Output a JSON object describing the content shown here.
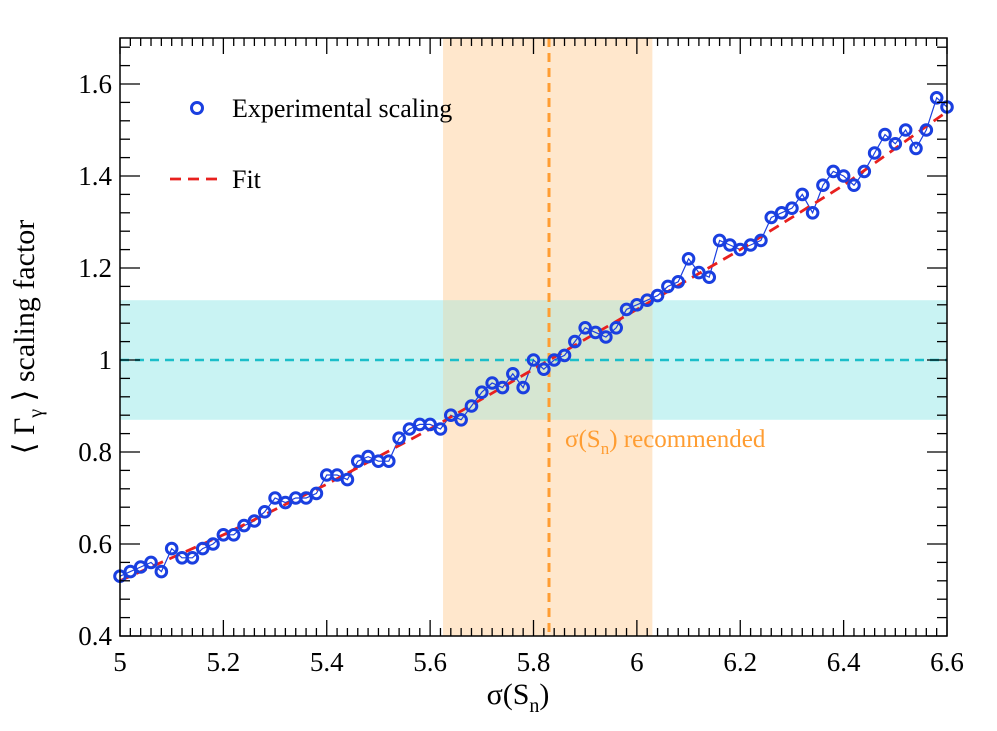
{
  "chart_data": {
    "type": "scatter",
    "title": "",
    "xlabel_base": "σ(S",
    "xlabel_sub": "n",
    "xlabel_close": ")",
    "ylabel_pre": "⟨ Γ",
    "ylabel_sub": "γ",
    "ylabel_post": " ⟩ scaling factor",
    "xlim": [
      5.0,
      6.6
    ],
    "ylim": [
      0.4,
      1.7
    ],
    "x_ticks": [
      5.0,
      5.2,
      5.4,
      5.6,
      5.8,
      6.0,
      6.2,
      6.4,
      6.6
    ],
    "x_tick_labels": [
      "5",
      "5.2",
      "5.4",
      "5.6",
      "5.8",
      "6",
      "6.2",
      "6.4",
      "6.6"
    ],
    "y_ticks": [
      0.4,
      0.6,
      0.8,
      1.0,
      1.2,
      1.4,
      1.6
    ],
    "y_tick_labels": [
      "0.4",
      "0.6",
      "0.8",
      "1",
      "1.2",
      "1.4",
      "1.6"
    ],
    "legend": [
      {
        "label": "Experimental scaling",
        "marker": "open-circle",
        "color": "#1a3fe0"
      },
      {
        "label": "Fit",
        "marker": "dashed-line",
        "color": "#e8201e"
      }
    ],
    "legend_position": "top-left",
    "series": [
      {
        "name": "Experimental scaling",
        "x": [
          5.0,
          5.02,
          5.04,
          5.06,
          5.08,
          5.1,
          5.12,
          5.14,
          5.16,
          5.18,
          5.2,
          5.22,
          5.24,
          5.26,
          5.28,
          5.3,
          5.32,
          5.34,
          5.36,
          5.38,
          5.4,
          5.42,
          5.44,
          5.46,
          5.48,
          5.5,
          5.52,
          5.54,
          5.56,
          5.58,
          5.6,
          5.62,
          5.64,
          5.66,
          5.68,
          5.7,
          5.72,
          5.74,
          5.76,
          5.78,
          5.8,
          5.82,
          5.84,
          5.86,
          5.88,
          5.9,
          5.92,
          5.94,
          5.96,
          5.98,
          6.0,
          6.02,
          6.04,
          6.06,
          6.08,
          6.1,
          6.12,
          6.14,
          6.16,
          6.18,
          6.2,
          6.22,
          6.24,
          6.26,
          6.28,
          6.3,
          6.32,
          6.34,
          6.36,
          6.38,
          6.4,
          6.42,
          6.44,
          6.46,
          6.48,
          6.5,
          6.52,
          6.54,
          6.56,
          6.58,
          6.6
        ],
        "y": [
          0.53,
          0.54,
          0.55,
          0.56,
          0.54,
          0.59,
          0.57,
          0.57,
          0.59,
          0.6,
          0.62,
          0.62,
          0.64,
          0.65,
          0.67,
          0.7,
          0.69,
          0.7,
          0.7,
          0.71,
          0.75,
          0.75,
          0.74,
          0.78,
          0.79,
          0.78,
          0.78,
          0.83,
          0.85,
          0.86,
          0.86,
          0.85,
          0.88,
          0.87,
          0.9,
          0.93,
          0.95,
          0.94,
          0.97,
          0.94,
          1.0,
          0.98,
          1.0,
          1.01,
          1.04,
          1.07,
          1.06,
          1.05,
          1.07,
          1.11,
          1.12,
          1.13,
          1.14,
          1.16,
          1.17,
          1.22,
          1.19,
          1.18,
          1.26,
          1.25,
          1.24,
          1.25,
          1.26,
          1.31,
          1.32,
          1.33,
          1.36,
          1.32,
          1.38,
          1.41,
          1.4,
          1.38,
          1.41,
          1.45,
          1.49,
          1.47,
          1.5,
          1.46,
          1.5,
          1.57,
          1.55
        ]
      },
      {
        "name": "Fit",
        "x": [
          5.0,
          5.2,
          5.4,
          5.6,
          5.8,
          6.0,
          6.2,
          6.4,
          6.6
        ],
        "y": [
          0.52,
          0.62,
          0.73,
          0.85,
          0.98,
          1.11,
          1.24,
          1.38,
          1.54
        ]
      }
    ],
    "reference_y": 1.0,
    "y_band": [
      0.87,
      1.13
    ],
    "recommended_x": 5.83,
    "x_band": [
      5.625,
      6.03
    ],
    "annotation_base": "σ(S",
    "annotation_sub": "n",
    "annotation_post": ") recommended",
    "grid": false
  },
  "colors": {
    "points": "#1a3fe0",
    "fit": "#e8201e",
    "ref_line": "#1bbec9",
    "y_band": "#c9f3f3",
    "x_band": "#ffe7cc",
    "overlap_band": "#d6e6d2",
    "recommended_line": "#ff9d32"
  }
}
